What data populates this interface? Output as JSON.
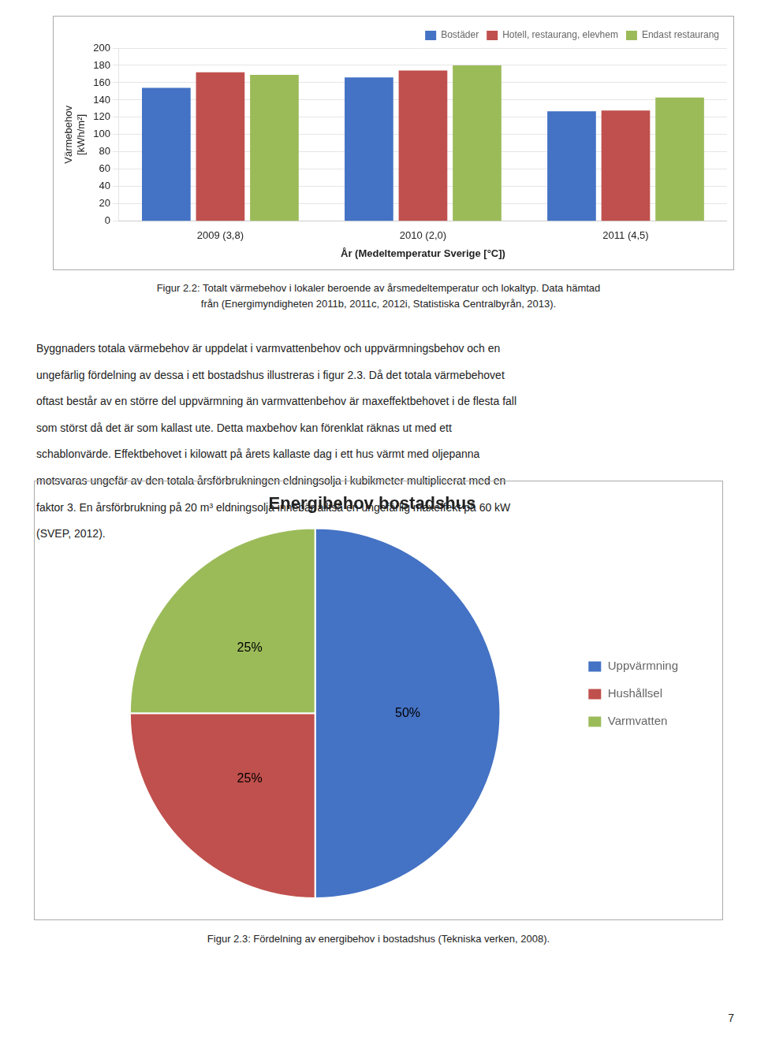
{
  "chart_data": [
    {
      "type": "bar",
      "xlabel": "År (Medeltemperatur Sverige [°C])",
      "ylabel": "Värmebehov\n[kWh/m²]",
      "categories": [
        "2009 (3,8)",
        "2010 (2,0)",
        "2011 (4,5)"
      ],
      "series": [
        {
          "name": "Bostäder",
          "color": "#4472C4",
          "values": [
            154,
            166,
            127
          ]
        },
        {
          "name": "Hotell, restaurang, elevhem",
          "color": "#C0504D",
          "values": [
            172,
            174,
            128
          ]
        },
        {
          "name": "Endast restaurang",
          "color": "#9BBB59",
          "values": [
            169,
            180,
            143
          ]
        }
      ],
      "ylim": [
        0,
        200
      ],
      "yticks": [
        0,
        20,
        40,
        60,
        80,
        100,
        120,
        140,
        160,
        180,
        200
      ],
      "grid": true,
      "legend": "upper right",
      "caption": "Figur 2.2: Totalt värmebehov i lokaler beroende av årsmedeltemperatur och lokaltyp. Data hämtad\nfrån (Energimyndigheten 2011b, 2011c, 2012i, Statistiska Centralbyrån, 2013)."
    },
    {
      "type": "pie",
      "title": "Energibehov bostadshus",
      "categories": [
        "Uppvärmning",
        "Hushållsel",
        "Varmvatten"
      ],
      "values": [
        50,
        25,
        25
      ],
      "value_labels": [
        "50%",
        "25%",
        "25%"
      ],
      "colors": [
        "#4472C4",
        "#C0504D",
        "#9BBB59"
      ],
      "data_labels": true,
      "legend": "right",
      "caption": "Figur 2.3: Fördelning av energibehov i bostadshus (Tekniska verken, 2008)."
    }
  ],
  "body_text": [
    "Byggnaders totala värmebehov är uppdelat i varmvattenbehov och uppvärmningsbehov och en",
    "ungefärlig fördelning av dessa i ett bostadshus illustreras i figur 2.3. Då det totala värmebehovet",
    "oftast består av en större del uppvärmning än varmvattenbehov är maxeffektbehovet i de flesta fall",
    "som störst då det är som kallast ute. Detta maxbehov kan förenklat räknas ut med ett",
    "schablonvärde. Effektbehovet i kilowatt på årets kallaste dag i ett hus värmt med oljepanna",
    "motsvaras ungefär av den totala årsförbrukningen eldningsolja i kubikmeter multiplicerat med en",
    "faktor 3. En årsförbrukning på 20 m³ eldningsolja innebär alltså en ungefärlig maxeffekt på 60 kW",
    "(SVEP, 2012)."
  ],
  "page_number": "7"
}
